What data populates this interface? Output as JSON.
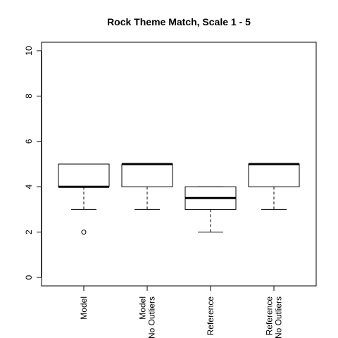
{
  "chart_data": {
    "type": "boxplot",
    "title": "Rock Theme Match, Scale 1 - 5",
    "xlabel": "",
    "ylabel": "",
    "ylim": [
      0,
      10
    ],
    "yticks": [
      0,
      2,
      4,
      6,
      8,
      10
    ],
    "ytick_labels": [
      "0",
      "2",
      "4",
      "6",
      "8",
      "10"
    ],
    "grid": false,
    "colors": {
      "stroke": "#000000",
      "fill": "#ffffff"
    },
    "boxes": [
      {
        "label_lines": [
          "Model"
        ],
        "whisker_low": 3,
        "q1": 4,
        "median": 4,
        "q3": 5,
        "whisker_high": 5,
        "outliers": [
          2
        ]
      },
      {
        "label_lines": [
          "Model",
          "No Outliers"
        ],
        "whisker_low": 3,
        "q1": 4,
        "median": 5,
        "q3": 5,
        "whisker_high": 5,
        "outliers": []
      },
      {
        "label_lines": [
          "Reference"
        ],
        "whisker_low": 2,
        "q1": 3,
        "median": 3.5,
        "q3": 4,
        "whisker_high": 4,
        "outliers": []
      },
      {
        "label_lines": [
          "Reference",
          "No Outliers"
        ],
        "whisker_low": 3,
        "q1": 4,
        "median": 5,
        "q3": 5,
        "whisker_high": 5,
        "outliers": []
      }
    ]
  }
}
